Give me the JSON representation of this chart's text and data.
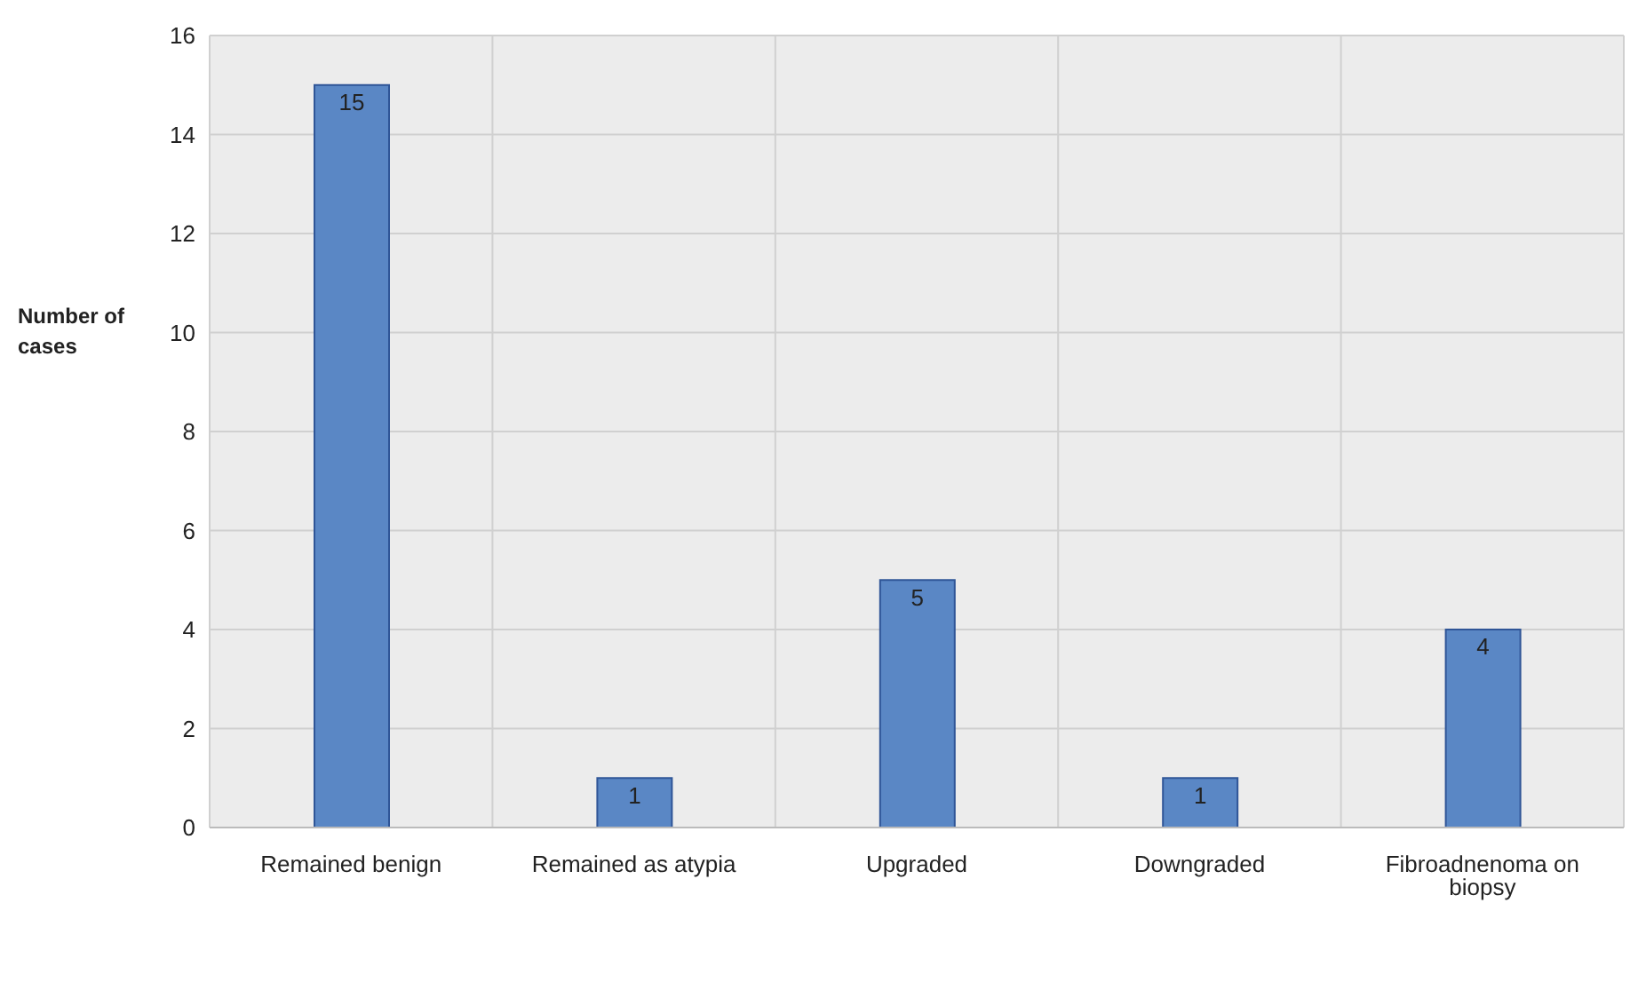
{
  "chart_data": {
    "type": "bar",
    "ylabel": "Number of cases",
    "categories": [
      "Remained benign",
      "Remained as atypia",
      "Upgraded",
      "Downgraded",
      "Fibroadnenoma on biopsy"
    ],
    "values": [
      15,
      1,
      5,
      1,
      4
    ],
    "color": "#5a87c5",
    "ylim": [
      0,
      16
    ],
    "yticks": [
      0,
      2,
      4,
      6,
      8,
      10,
      12,
      14,
      16
    ],
    "grid": true,
    "data_labels": true
  }
}
